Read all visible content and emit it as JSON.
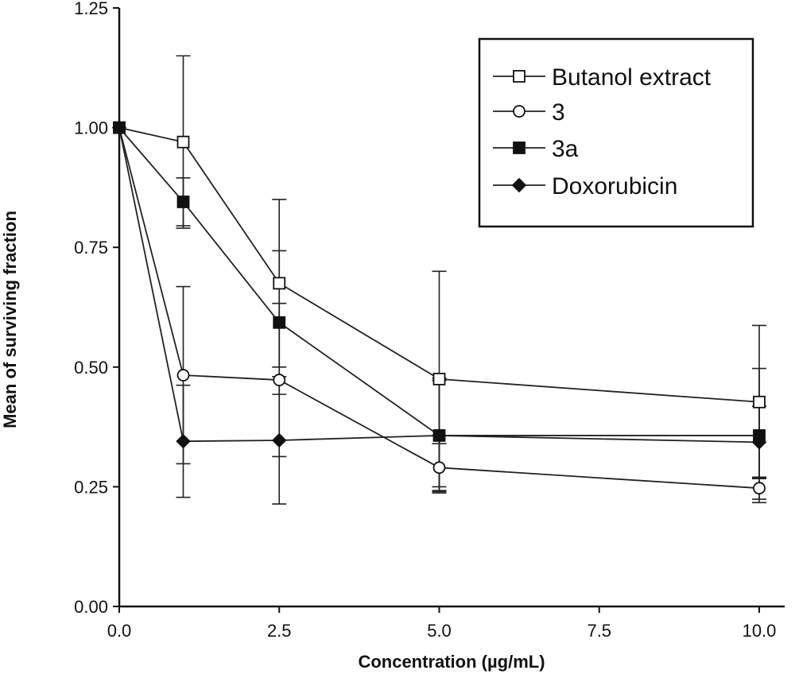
{
  "chart_data": {
    "type": "line",
    "xlabel": "Concentration (µg/mL)",
    "ylabel": "Mean of surviving fraction",
    "xlim": [
      0,
      10.4
    ],
    "ylim": [
      0,
      1.25
    ],
    "x_ticks": [
      "0.0",
      "2.5",
      "5.0",
      "7.5",
      "10.0"
    ],
    "y_ticks": [
      "0.00",
      "0.25",
      "0.50",
      "0.75",
      "1.00",
      "1.25"
    ],
    "x": [
      0,
      1,
      2.5,
      5,
      10
    ],
    "legend_position": "top-right",
    "series": [
      {
        "name": "Butanol extract",
        "marker": "square-open",
        "values": [
          1.0,
          0.97,
          0.675,
          0.475,
          0.427
        ],
        "error": [
          0,
          0.18,
          0.175,
          0.225,
          0.16
        ]
      },
      {
        "name": "3",
        "marker": "circle-open",
        "values": [
          1.0,
          0.483,
          0.473,
          0.29,
          0.247
        ],
        "error": [
          0,
          0.185,
          0.16,
          0.05,
          0.023
        ]
      },
      {
        "name": "3a",
        "marker": "square-filled",
        "values": [
          1.0,
          0.845,
          0.593,
          0.357,
          0.357
        ],
        "error": [
          0,
          0.05,
          0.15,
          0.12,
          0.14
        ]
      },
      {
        "name": "Doxorubicin",
        "marker": "diamond-filled",
        "values": [
          1.0,
          0.345,
          0.347,
          0.357,
          0.343
        ],
        "error": [
          0,
          0.117,
          0.133,
          0.115,
          0.075
        ]
      }
    ]
  }
}
